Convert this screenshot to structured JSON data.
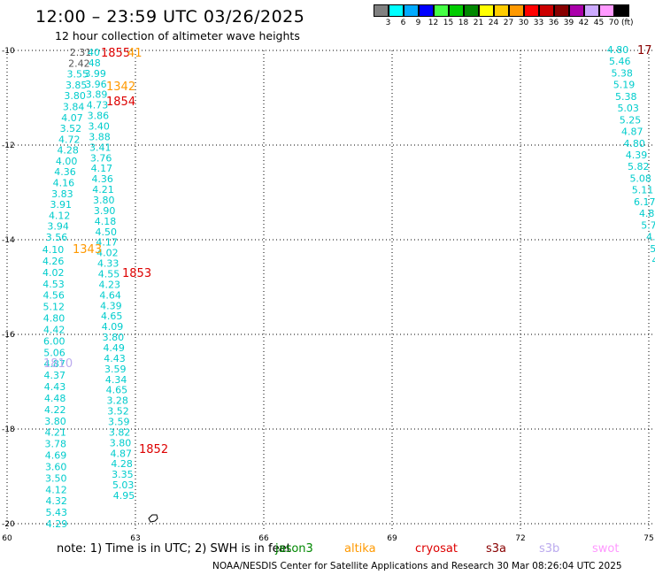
{
  "header": {
    "title": "12:00 – 23:59 UTC 03/26/2025",
    "subtitle": "12 hour collection of altimeter wave heights"
  },
  "colorbar": {
    "labels": [
      "3",
      "6",
      "9",
      "12",
      "15",
      "18",
      "21",
      "24",
      "27",
      "30",
      "33",
      "36",
      "39",
      "42",
      "45",
      "70"
    ],
    "unit": "(ft)",
    "colors": [
      "#808080",
      "#00ffff",
      "#00aaff",
      "#0000ff",
      "#44ff44",
      "#00cc00",
      "#008800",
      "#ffff00",
      "#ffcc00",
      "#ff9900",
      "#ff0000",
      "#cc0000",
      "#880000",
      "#aa00aa",
      "#ccaaff",
      "#ff99ff",
      "#000000"
    ]
  },
  "axes": {
    "lon_labels": [
      "60",
      "63",
      "66",
      "69",
      "72",
      "75"
    ],
    "lat_labels": [
      "-10",
      "-12",
      "-14",
      "-16",
      "-18",
      "-20"
    ]
  },
  "times": [
    {
      "text": "1855",
      "color": "#dd0000"
    },
    {
      "text": "41",
      "color": "#ff9900"
    },
    {
      "text": "1342",
      "color": "#ff9900"
    },
    {
      "text": "1854",
      "color": "#dd0000"
    },
    {
      "text": "1343",
      "color": "#ff9900"
    },
    {
      "text": "1853",
      "color": "#dd0000"
    },
    {
      "text": "1810",
      "color": "#bbaaee"
    },
    {
      "text": "1852",
      "color": "#dd0000"
    },
    {
      "text": "17",
      "color": "#880000"
    }
  ],
  "track_left": [
    "4.10",
    "4.26",
    "4.02",
    "4.53",
    "4.56",
    "5.12",
    "4.80",
    "4.42",
    "6.00",
    "5.06",
    "4.87",
    "4.37",
    "4.43",
    "4.48",
    "4.22",
    "3.80",
    "4.21",
    "3.78",
    "4.69",
    "3.60",
    "3.50",
    "4.12",
    "4.32",
    "5.43",
    "4.29"
  ],
  "track_top": [
    "2.31",
    "2.42",
    "3.55",
    "3.85",
    "3.80",
    "3.84",
    "4.07",
    "3.52",
    "4.72",
    "4.28",
    "4.00",
    "4.36",
    "4.16",
    "3.83",
    "3.91",
    "4.12",
    "3.94",
    "3.56"
  ],
  "track_mid": [
    "40",
    "48",
    "3.99",
    "3.96",
    "3.89",
    "4.73",
    "3.86",
    "3.40",
    "3.88",
    "3.41",
    "3.76",
    "4.17",
    "4.36",
    "4.21",
    "3.80",
    "3.90",
    "4.18",
    "4.50",
    "4.17",
    "4.02",
    "4.33",
    "4.55",
    "4.23",
    "4.64",
    "4.39",
    "4.65",
    "4.09",
    "3.80",
    "4.49",
    "4.43",
    "3.59",
    "4.34",
    "4.65",
    "3.28",
    "3.52",
    "3.59",
    "3.82",
    "3.80",
    "4.87",
    "4.28",
    "3.35",
    "5.03",
    "4.95"
  ],
  "track_right": [
    "4.80",
    "5.46",
    "5.38",
    "5.19",
    "5.38",
    "5.03",
    "5.25",
    "4.87",
    "4.80",
    "4.39",
    "5.82",
    "5.08",
    "5.11",
    "6.17",
    "4.8",
    "5.7",
    "4.",
    "5",
    "4"
  ],
  "footer": {
    "note": "note:  1) Time is in UTC;  2) SWH is in feet",
    "satellites": [
      {
        "name": "jason3",
        "color": "#008800"
      },
      {
        "name": "altika",
        "color": "#ff9900"
      },
      {
        "name": "cryosat",
        "color": "#dd0000"
      },
      {
        "name": "s3a",
        "color": "#880000"
      },
      {
        "name": "s3b",
        "color": "#bbaaee"
      },
      {
        "name": "swot",
        "color": "#ff99ff"
      }
    ],
    "credit": "NOAA/NESDIS Center for Satellite Applications and Research    30 Mar 08:26:04 UTC 2025"
  }
}
